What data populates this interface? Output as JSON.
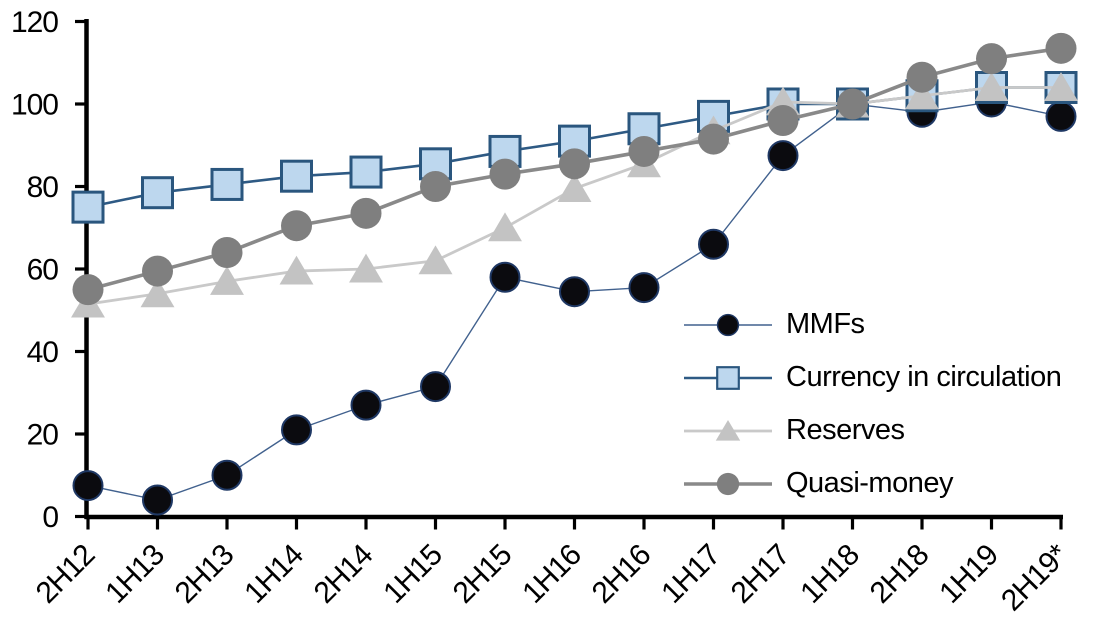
{
  "chart_data": {
    "type": "line",
    "title": "",
    "xlabel": "",
    "ylabel": "",
    "categories": [
      "2H12",
      "1H13",
      "2H13",
      "1H14",
      "2H14",
      "1H15",
      "2H15",
      "1H16",
      "2H16",
      "1H17",
      "2H17",
      "1H18",
      "2H18",
      "1H19",
      "2H19*"
    ],
    "series": [
      {
        "name": "MMFs",
        "marker": "circle",
        "marker_size": 29,
        "color": "#0b0b0f",
        "marker_stroke": "#1f3864",
        "line_color": "#41618e",
        "line_width": 1.4,
        "values": [
          7.5,
          4,
          10,
          21,
          27,
          31.5,
          58,
          54.5,
          55.5,
          66,
          87.5,
          100,
          98,
          100.5,
          97
        ]
      },
      {
        "name": "Currency in circulation",
        "marker": "square",
        "marker_size": 30,
        "color": "#bdd7ee",
        "marker_stroke": "#2a567e",
        "line_color": "#2e5a84",
        "line_width": 2.6,
        "values": [
          75,
          78.5,
          80.5,
          82.5,
          83.5,
          85.5,
          88.5,
          91,
          94,
          97,
          100,
          100,
          102,
          104,
          104
        ]
      },
      {
        "name": "Reserves",
        "marker": "triangle",
        "marker_size": 32,
        "color": "#c3c3c3",
        "marker_stroke": "none",
        "line_color": "#c9c9c9",
        "line_width": 2.8,
        "values": [
          51.5,
          54,
          57,
          59.5,
          60,
          62,
          70,
          79.5,
          85.5,
          93.5,
          100.5,
          100,
          102,
          104,
          104
        ]
      },
      {
        "name": "Quasi-money",
        "marker": "circle",
        "marker_size": 31,
        "color": "#7f7f7f",
        "marker_stroke": "none",
        "line_color": "#898989",
        "line_width": 3.6,
        "values": [
          55,
          59.5,
          64,
          70.5,
          73.5,
          80,
          83,
          85.5,
          88.5,
          91.5,
          96,
          100,
          106.5,
          111,
          113.5
        ]
      }
    ],
    "ylim": [
      0,
      120
    ],
    "yticks": [
      0,
      20,
      40,
      60,
      80,
      100,
      120
    ],
    "grid": false,
    "legend_position": "inside-right",
    "axis_color": "#000000",
    "background": "#ffffff"
  }
}
